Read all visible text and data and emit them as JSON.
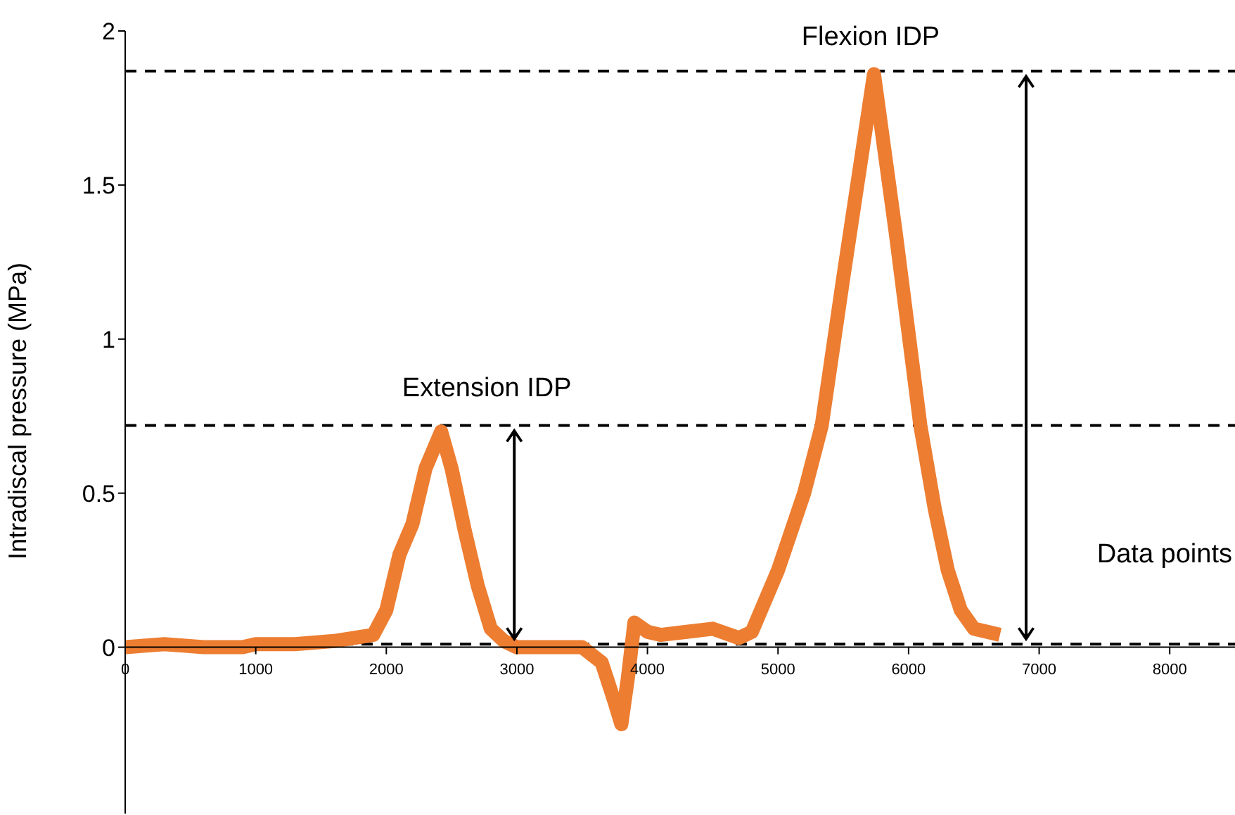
{
  "chart_data": {
    "type": "line",
    "xlabel": "Data points",
    "ylabel": "Intradiscal pressure (MPa)",
    "xlim": [
      0,
      8500
    ],
    "xticks": [
      0,
      1000,
      2000,
      3000,
      4000,
      5000,
      6000,
      7000,
      8000
    ],
    "ylim": [
      -0.54,
      2
    ],
    "yticks": [
      0,
      0.5,
      1,
      1.5,
      2
    ],
    "series": [
      {
        "color": "#ed7d31",
        "x": [
          0,
          300,
          600,
          900,
          1000,
          1300,
          1600,
          1900,
          2000,
          2100,
          2200,
          2300,
          2420,
          2500,
          2600,
          2700,
          2800,
          2900,
          3000,
          3200,
          3500,
          3650,
          3750,
          3800,
          3850,
          3900,
          4000,
          4100,
          4300,
          4500,
          4700,
          4800,
          5000,
          5200,
          5335,
          5500,
          5735,
          5900,
          6090,
          6200,
          6300,
          6400,
          6500,
          6700
        ],
        "values": [
          0,
          0.01,
          0,
          0,
          0.01,
          0.01,
          0.02,
          0.04,
          0.12,
          0.3,
          0.4,
          0.58,
          0.7,
          0.58,
          0.38,
          0.2,
          0.06,
          0.02,
          0,
          0,
          0,
          -0.05,
          -0.18,
          -0.25,
          -0.1,
          0.08,
          0.05,
          0.04,
          0.05,
          0.06,
          0.03,
          0.05,
          0.25,
          0.5,
          0.72,
          1.2,
          1.86,
          1.35,
          0.72,
          0.45,
          0.25,
          0.12,
          0.06,
          0.04
        ]
      }
    ],
    "ref_lines": [
      {
        "axis": "y",
        "value": 1.87,
        "line_style": "dashed",
        "color": "#000000"
      },
      {
        "axis": "y",
        "value": 0.72,
        "line_style": "dashed",
        "color": "#000000"
      },
      {
        "axis": "y",
        "value": 0.01,
        "line_style": "dashed",
        "color": "#000000"
      }
    ],
    "annotations": [
      "Extension IDP",
      "Flexion IDP"
    ],
    "marker": "none",
    "line_style": "solid"
  }
}
